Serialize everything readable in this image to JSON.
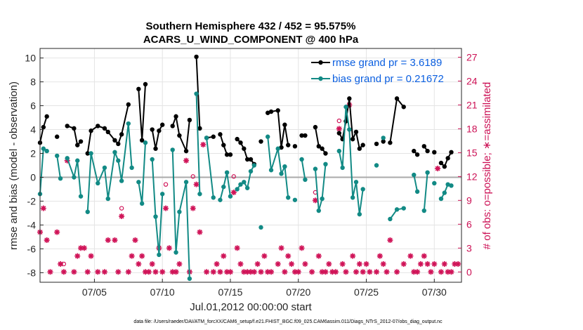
{
  "chart_data": {
    "type": "line",
    "title": "Southern Hemisphere 432 / 452 = 95.575%",
    "subtitle": "ACARS_U_WIND_COMPONENT @ 400 hPa",
    "xlabel": "Jul.01,2012 00:00:00 start",
    "ylabel": "rmse and bias (model - observation)",
    "ylabel_right": "# of obs: o=possible; ∗=assimilated",
    "footer": "data file: /Users/raeder/DAI/ATM_forcXX/CAM6_setup/f.e21.FHIST_BGC.f09_025.CAM6assim.011/Diags_NTrS_2012-07/obs_diag_output.nc",
    "xlim": [
      1,
      32
    ],
    "ylim": [
      -8.8,
      10.8
    ],
    "ylim_right": [
      -1.3,
      28.1
    ],
    "xticks": [
      5,
      10,
      15,
      20,
      25,
      30
    ],
    "xtick_labels": [
      "07/05",
      "07/10",
      "07/15",
      "07/20",
      "07/25",
      "07/30"
    ],
    "yticks": [
      -8,
      -6,
      -4,
      -2,
      0,
      2,
      4,
      6,
      8,
      10
    ],
    "yticks_right": [
      0,
      3,
      6,
      9,
      12,
      15,
      18,
      21,
      24,
      27
    ],
    "grid": true,
    "legend_position": "top-right",
    "colors": {
      "rmse": "#000000",
      "bias": "#128a85",
      "obs": "#d01458",
      "zero_line": "#aaaaaa"
    },
    "series": [
      {
        "name": "rmse grand pr = 3.6189",
        "x": [
          1.0,
          1.25,
          1.5,
          1.75,
          2.25,
          2.5,
          2.75,
          3.0,
          3.5,
          3.75,
          4.0,
          4.25,
          4.5,
          4.75,
          5.25,
          5.75,
          6.0,
          6.5,
          6.75,
          7.0,
          7.5,
          7.75,
          8.0,
          8.25,
          8.5,
          8.75,
          9.0,
          9.25,
          9.5,
          9.75,
          10.0,
          10.25,
          10.5,
          10.75,
          11.0,
          11.25,
          11.75,
          12.0,
          12.25,
          12.5,
          12.75,
          13.0,
          13.25,
          13.75,
          14.0,
          14.25,
          14.5,
          14.75,
          15.0,
          15.25,
          15.5,
          15.75,
          16.0,
          16.25,
          16.5,
          16.75,
          17.0,
          17.25,
          17.5,
          17.75,
          18.0,
          18.5,
          18.75,
          19.0,
          19.25,
          19.5,
          19.75,
          20.0,
          20.25,
          20.5,
          21.0,
          21.25,
          21.5,
          21.75,
          22.0,
          22.25,
          22.5,
          22.75,
          23.0,
          23.25,
          23.5,
          23.75,
          24.0,
          24.25,
          24.5,
          24.75,
          25.0,
          25.25,
          25.75,
          26.0,
          26.25,
          26.5,
          26.75,
          27.25,
          27.75,
          28.25,
          28.5,
          28.75,
          29.0,
          29.25,
          29.5,
          29.75,
          30.0,
          30.25,
          30.5,
          30.75,
          31.0,
          31.25,
          31.5,
          31.75
        ],
        "y": [
          2.9,
          4.2,
          5.1,
          null,
          3.4,
          null,
          null,
          4.3,
          4.1,
          2.7,
          3.0,
          null,
          2.0,
          3.9,
          4.3,
          4.1,
          3.8,
          3.1,
          2.8,
          3.6,
          6.1,
          null,
          null,
          7.4,
          3.1,
          7.8,
          null,
          4.0,
          2.4,
          3.9,
          4.4,
          null,
          null,
          4.3,
          5.1,
          3.5,
          2.2,
          4.8,
          null,
          10.1,
          4.1,
          null,
          3.3,
          3.4,
          null,
          3.6,
          2.7,
          1.9,
          1.9,
          null,
          3.2,
          2.9,
          2.4,
          1.5,
          1.5,
          1.1,
          null,
          3.0,
          null,
          5.4,
          5.5,
          5.6,
          2.5,
          4.4,
          2.7,
          null,
          2.6,
          null,
          3.5,
          3.5,
          null,
          4.2,
          2.6,
          2.4,
          2.0,
          null,
          null,
          null,
          3.7,
          3.2,
          4.7,
          6.6,
          3.2,
          3.8,
          2.4,
          2.7,
          null,
          null,
          2.8,
          null,
          3.0,
          null,
          2.9,
          6.6,
          5.9,
          null,
          2.2,
          1.9,
          null,
          2.6,
          2.2,
          null,
          2.1,
          null,
          1.2,
          0.9,
          1.6,
          2.1,
          null,
          null
        ]
      },
      {
        "name": "bias grand pr = 0.21672",
        "x": [
          1.0,
          1.25,
          1.5,
          1.75,
          2.25,
          2.5,
          2.75,
          3.0,
          3.5,
          3.75,
          4.0,
          4.25,
          4.5,
          4.75,
          5.25,
          5.75,
          6.0,
          6.5,
          6.75,
          7.0,
          7.5,
          7.75,
          8.0,
          8.25,
          8.5,
          8.75,
          9.0,
          9.25,
          9.5,
          9.75,
          10.0,
          10.25,
          10.5,
          10.75,
          11.0,
          11.25,
          11.75,
          12.0,
          12.25,
          12.5,
          12.75,
          13.0,
          13.25,
          13.75,
          14.0,
          14.25,
          14.5,
          14.75,
          15.0,
          15.25,
          15.5,
          15.75,
          16.0,
          16.25,
          16.5,
          16.75,
          17.0,
          17.25,
          17.5,
          17.75,
          18.0,
          18.5,
          18.75,
          19.0,
          19.25,
          19.5,
          19.75,
          20.0,
          20.25,
          20.5,
          21.0,
          21.25,
          21.5,
          21.75,
          22.0,
          22.25,
          22.5,
          22.75,
          23.0,
          23.25,
          23.5,
          23.75,
          24.0,
          24.25,
          24.5,
          24.75,
          25.0,
          25.25,
          25.75,
          26.0,
          26.25,
          26.5,
          26.75,
          27.25,
          27.75,
          28.25,
          28.5,
          28.75,
          29.0,
          29.25,
          29.5,
          29.75,
          30.0,
          30.25,
          30.5,
          30.75,
          31.0,
          31.25,
          31.5,
          31.75
        ],
        "y": [
          -1.4,
          2.4,
          2.2,
          null,
          1.8,
          -0.1,
          null,
          1.6,
          0.0,
          1.4,
          -1.6,
          null,
          -2.9,
          2.0,
          -0.5,
          0.8,
          -1.8,
          2.1,
          1.4,
          -0.3,
          4.5,
          0.8,
          null,
          -0.4,
          -2.2,
          2.9,
          null,
          1.5,
          -3.3,
          -6.5,
          -1.4,
          null,
          null,
          2.3,
          -6.3,
          -2.9,
          -0.4,
          -8.5,
          null,
          7.0,
          -1.4,
          null,
          3.3,
          -1.7,
          null,
          -1.9,
          -0.8,
          0.4,
          -1.6,
          null,
          -1.0,
          -0.6,
          -0.4,
          -0.9,
          0.5,
          1.0,
          null,
          -4.2,
          null,
          3.4,
          0.6,
          2.4,
          0.3,
          0.9,
          -1.7,
          null,
          -1.9,
          null,
          1.5,
          -0.2,
          null,
          0.7,
          -2.8,
          -1.8,
          1.1,
          null,
          null,
          null,
          2.2,
          0.8,
          5.9,
          4.0,
          -1.7,
          -0.4,
          -3.1,
          -1.0,
          null,
          null,
          1.0,
          null,
          3.3,
          null,
          -3.5,
          -2.7,
          -2.6,
          null,
          0.2,
          -1.2,
          null,
          -2.8,
          0.4,
          null,
          -0.5,
          null,
          -1.8,
          -1.3,
          -0.6,
          -0.7,
          null,
          null
        ]
      },
      {
        "name": "possible obs",
        "x": [
          1.0,
          1.25,
          1.5,
          1.75,
          2.25,
          2.5,
          2.75,
          3.0,
          3.5,
          3.75,
          4.0,
          4.25,
          4.5,
          4.75,
          5.25,
          5.75,
          6.0,
          6.5,
          6.75,
          7.0,
          7.5,
          7.75,
          8.0,
          8.25,
          8.5,
          8.75,
          9.0,
          9.25,
          9.5,
          9.75,
          10.0,
          10.25,
          10.5,
          10.75,
          11.0,
          11.25,
          11.75,
          12.0,
          12.25,
          12.5,
          12.75,
          13.0,
          13.25,
          13.75,
          14.0,
          14.25,
          14.5,
          14.75,
          15.0,
          15.25,
          15.5,
          15.75,
          16.0,
          16.25,
          16.5,
          16.75,
          17.0,
          17.25,
          17.5,
          17.75,
          18.0,
          18.5,
          18.75,
          19.0,
          19.25,
          19.5,
          19.75,
          20.0,
          20.25,
          20.5,
          21.0,
          21.25,
          21.5,
          21.75,
          22.0,
          22.25,
          22.5,
          22.75,
          23.0,
          23.25,
          23.5,
          23.75,
          24.0,
          24.25,
          24.5,
          24.75,
          25.0,
          25.25,
          25.75,
          26.0,
          26.25,
          26.5,
          26.75,
          27.25,
          27.75,
          28.25,
          28.5,
          28.75,
          29.0,
          29.25,
          29.5,
          29.75,
          30.0,
          30.25,
          30.5,
          30.75,
          31.0,
          31.25,
          31.5,
          31.75
        ],
        "y": [
          5,
          8,
          4,
          0,
          5,
          1,
          1,
          14,
          0,
          2,
          3,
          3,
          0,
          2,
          0,
          0,
          4,
          4,
          0,
          8,
          0,
          2,
          4,
          1,
          2,
          0,
          0,
          1,
          0,
          3,
          0,
          11,
          3,
          0,
          0,
          1,
          14,
          0,
          12,
          11,
          5,
          16,
          0,
          0,
          1,
          0,
          2,
          0,
          0,
          12,
          3,
          1,
          0,
          0,
          0,
          0,
          1,
          0,
          2,
          0,
          0,
          1,
          3,
          0,
          2,
          1,
          0,
          0,
          3,
          1,
          0,
          10,
          2,
          0,
          0,
          1,
          0,
          0,
          19,
          1,
          0,
          21,
          2,
          0,
          1,
          0,
          1,
          0,
          0,
          2,
          1,
          0,
          4,
          0,
          1,
          2,
          0,
          0,
          1,
          2,
          1,
          0,
          1,
          13,
          0,
          1,
          0,
          0,
          1,
          1
        ]
      },
      {
        "name": "assimilated obs",
        "x": [
          1.0,
          1.25,
          1.5,
          1.75,
          2.25,
          2.5,
          2.75,
          3.0,
          3.5,
          3.75,
          4.0,
          4.25,
          4.5,
          4.75,
          5.25,
          5.75,
          6.0,
          6.5,
          6.75,
          7.0,
          7.5,
          7.75,
          8.0,
          8.25,
          8.5,
          8.75,
          9.0,
          9.25,
          9.5,
          9.75,
          10.0,
          10.25,
          10.5,
          10.75,
          11.0,
          11.25,
          11.75,
          12.0,
          12.25,
          12.5,
          12.75,
          13.0,
          13.25,
          13.75,
          14.0,
          14.25,
          14.5,
          14.75,
          15.0,
          15.25,
          15.5,
          15.75,
          16.0,
          16.25,
          16.5,
          16.75,
          17.0,
          17.25,
          17.5,
          17.75,
          18.0,
          18.5,
          18.75,
          19.0,
          19.25,
          19.5,
          19.75,
          20.0,
          20.25,
          20.5,
          21.0,
          21.25,
          21.5,
          21.75,
          22.0,
          22.25,
          22.5,
          22.75,
          23.0,
          23.25,
          23.5,
          23.75,
          24.0,
          24.25,
          24.5,
          24.75,
          25.0,
          25.25,
          25.75,
          26.0,
          26.25,
          26.5,
          26.75,
          27.25,
          27.75,
          28.25,
          28.5,
          28.75,
          29.0,
          29.25,
          29.5,
          29.75,
          30.0,
          30.25,
          30.5,
          30.75,
          31.0,
          31.25,
          31.5,
          31.75
        ],
        "y": [
          5,
          8,
          4,
          0,
          5,
          1,
          0,
          14,
          0,
          2,
          3,
          3,
          0,
          2,
          0,
          0,
          4,
          4,
          0,
          7,
          0,
          2,
          4,
          1,
          2,
          0,
          0,
          1,
          0,
          3,
          0,
          8,
          3,
          0,
          0,
          1,
          14,
          0,
          8,
          11,
          5,
          16,
          0,
          0,
          1,
          0,
          2,
          0,
          0,
          10,
          3,
          1,
          0,
          0,
          0,
          0,
          1,
          0,
          2,
          0,
          0,
          1,
          3,
          0,
          2,
          1,
          0,
          0,
          3,
          1,
          0,
          9,
          2,
          0,
          0,
          1,
          0,
          0,
          18,
          1,
          0,
          21,
          2,
          0,
          1,
          0,
          1,
          0,
          0,
          2,
          1,
          0,
          4,
          0,
          1,
          2,
          0,
          0,
          1,
          2,
          1,
          0,
          1,
          13,
          0,
          1,
          0,
          0,
          1,
          1
        ]
      }
    ]
  }
}
